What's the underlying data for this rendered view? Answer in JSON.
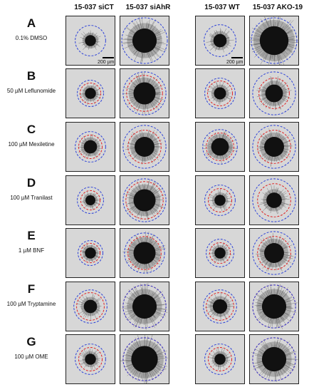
{
  "columns": [
    "15-037 siCT",
    "15-037 siAhR",
    "15-037 WT",
    "15-037 AKO-19"
  ],
  "rows": [
    {
      "letter": "A",
      "condition": "0.1% DMSO"
    },
    {
      "letter": "B",
      "condition": "50 µM Leflunomide"
    },
    {
      "letter": "C",
      "condition": "100 µM Mexiletine"
    },
    {
      "letter": "D",
      "condition": "100 µM Tranilast"
    },
    {
      "letter": "E",
      "condition": "1 µM BNF"
    },
    {
      "letter": "F",
      "condition": "100 µM Tryptamine"
    },
    {
      "letter": "G",
      "condition": "100 µM OME"
    }
  ],
  "scale_label": "200 µm",
  "colors": {
    "blue_circle": "#2a3fd8",
    "red_circle": "#e02020",
    "background": "#d7d7d7"
  }
}
